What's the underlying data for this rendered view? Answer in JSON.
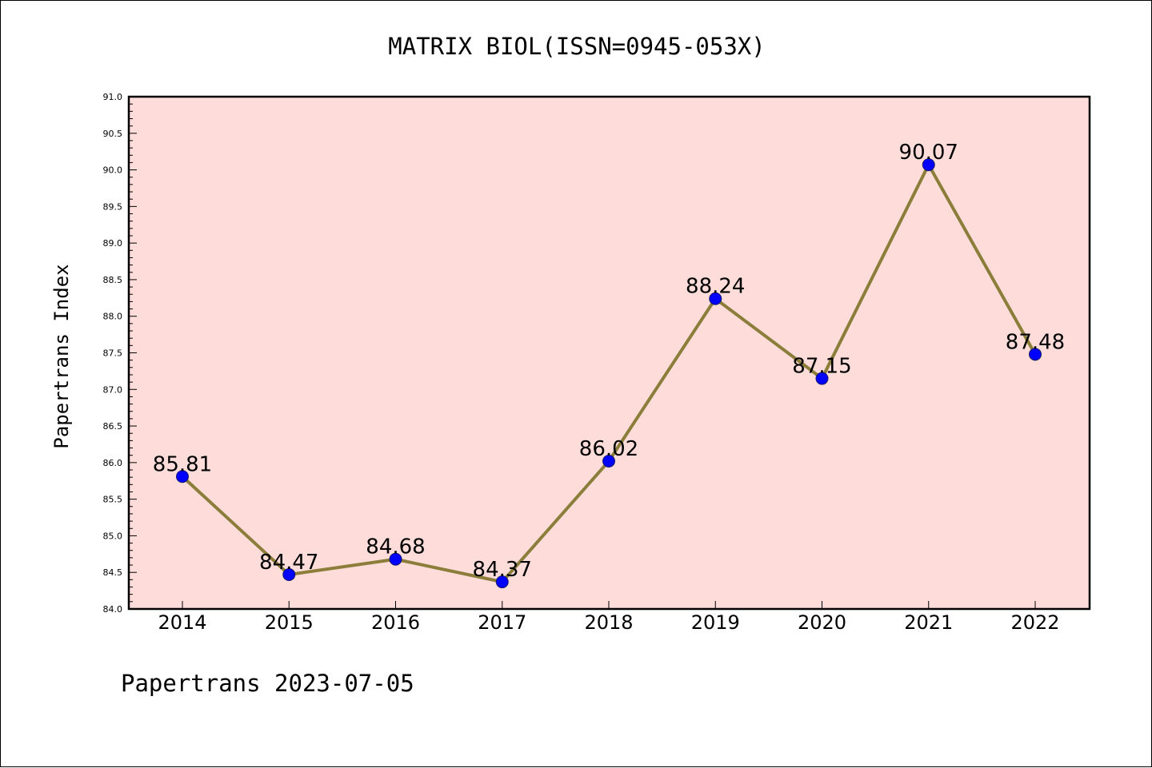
{
  "chart_data": {
    "type": "line",
    "title": "MATRIX BIOL(ISSN=0945-053X)",
    "ylabel": "Papertrans Index",
    "xlabel": "",
    "footer": "Papertrans 2023-07-05",
    "categories": [
      "2014",
      "2015",
      "2016",
      "2017",
      "2018",
      "2019",
      "2020",
      "2021",
      "2022"
    ],
    "values": [
      85.81,
      84.47,
      84.68,
      84.37,
      86.02,
      88.24,
      87.15,
      90.07,
      87.48
    ],
    "data_labels": [
      "85.81",
      "84.47",
      "84.68",
      "84.37",
      "86.02",
      "88.24",
      "87.15",
      "90.07",
      "87.48"
    ],
    "ylim": [
      84.0,
      91.0
    ],
    "yticks": [
      "84.0",
      "84.5",
      "85.0",
      "85.5",
      "86.0",
      "86.5",
      "87.0",
      "87.5",
      "88.0",
      "88.5",
      "89.0",
      "89.5",
      "90.0",
      "90.5",
      "91.0"
    ],
    "grid": false,
    "colors": {
      "plot_background": "#fddcda",
      "line": "#8b7d3a",
      "marker": "#0000ff"
    }
  }
}
